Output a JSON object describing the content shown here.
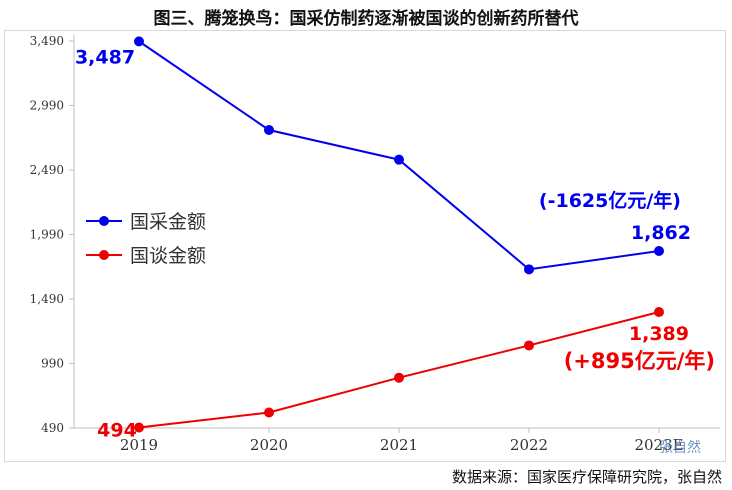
{
  "title": "图三、腾笼换鸟：国采仿制药逐渐被国谈的创新药所替代",
  "source": "数据来源：国家医疗保障研究院，张自然",
  "watermark": "张自然",
  "chart_data": {
    "type": "line",
    "categories": [
      "2019",
      "2020",
      "2021",
      "2022",
      "2023E"
    ],
    "ylim": [
      490,
      3490
    ],
    "yticks": [
      490,
      990,
      1490,
      1990,
      2490,
      2990,
      3490
    ],
    "ytick_labels": [
      "490",
      "990",
      "1,490",
      "1,990",
      "2,490",
      "2,990",
      "3,490"
    ],
    "grid": false,
    "legend_position": "left",
    "series": [
      {
        "name": "国采金额",
        "color": "#0000ee",
        "values": [
          3487,
          2800,
          2570,
          1720,
          1862
        ]
      },
      {
        "name": "国谈金额",
        "color": "#ee0000",
        "values": [
          494,
          610,
          880,
          1130,
          1389
        ]
      }
    ],
    "annotations": [
      {
        "text": "3,487",
        "color": "#0000ee",
        "series": 0,
        "index": 0
      },
      {
        "text": "(-1625亿元/年)",
        "color": "#0000ee",
        "series": 0,
        "index": 4
      },
      {
        "text": "1,862",
        "color": "#0000ee",
        "series": 0,
        "index": 4
      },
      {
        "text": "494",
        "color": "#ee0000",
        "series": 1,
        "index": 0
      },
      {
        "text": "1,389",
        "color": "#ee0000",
        "series": 1,
        "index": 4
      },
      {
        "text": "(+895亿元/年)",
        "color": "#ee0000",
        "series": 1,
        "index": 4
      }
    ]
  }
}
